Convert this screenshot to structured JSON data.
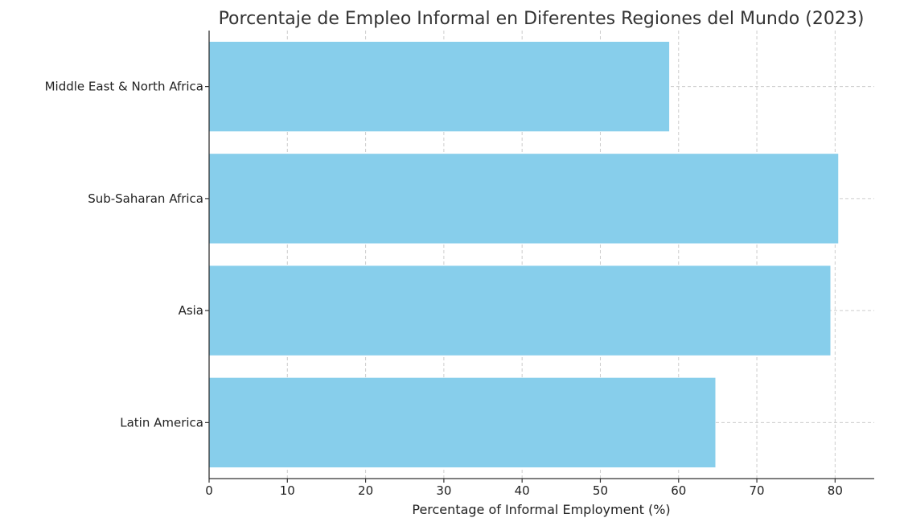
{
  "chart_data": {
    "type": "bar",
    "orientation": "horizontal",
    "title": "Porcentaje de Empleo Informal en Diferentes Regiones del Mundo (2023)",
    "xlabel": "Percentage of Informal Employment (%)",
    "ylabel": "",
    "categories": [
      "Latin America",
      "Asia",
      "Sub-Saharan Africa",
      "Middle East & North Africa"
    ],
    "values": [
      64.7,
      79.4,
      80.4,
      58.8
    ],
    "xlim": [
      0,
      85
    ],
    "xticks": [
      0,
      10,
      20,
      30,
      40,
      50,
      60,
      70,
      80
    ],
    "grid": true,
    "bar_color": "#87CEEB"
  }
}
